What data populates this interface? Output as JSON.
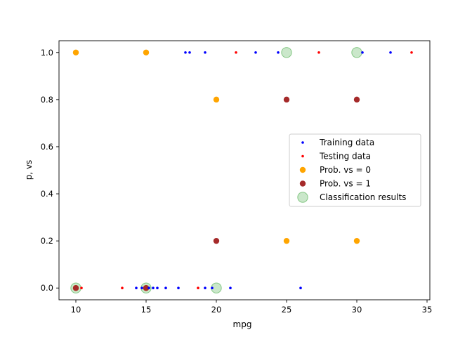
{
  "chart_data": {
    "type": "scatter",
    "xlabel": "mpg",
    "ylabel": "p, vs",
    "xlim": [
      8.8,
      35.2
    ],
    "ylim": [
      -0.05,
      1.05
    ],
    "xticks": [
      10,
      15,
      20,
      25,
      30,
      35
    ],
    "yticks": [
      0.0,
      0.2,
      0.4,
      0.6,
      0.8,
      1.0
    ],
    "xtick_labels": [
      "10",
      "15",
      "20",
      "25",
      "30",
      "35"
    ],
    "ytick_labels": [
      "0.0",
      "0.2",
      "0.4",
      "0.6",
      "0.8",
      "1.0"
    ],
    "grid": false,
    "legend_position": "center-right",
    "series": [
      {
        "name": "Training data",
        "color": "#0000ff",
        "marker": "small-dot",
        "points": [
          [
            17.8,
            1
          ],
          [
            18.1,
            1
          ],
          [
            19.2,
            1
          ],
          [
            22.8,
            1
          ],
          [
            24.4,
            1
          ],
          [
            30.4,
            1
          ],
          [
            32.4,
            1
          ],
          [
            14.3,
            0
          ],
          [
            14.7,
            0
          ],
          [
            15.2,
            0
          ],
          [
            15.5,
            0
          ],
          [
            15.8,
            0
          ],
          [
            16.4,
            0
          ],
          [
            17.3,
            0
          ],
          [
            19.2,
            0
          ],
          [
            19.7,
            0
          ],
          [
            21.0,
            0
          ],
          [
            26.0,
            0
          ]
        ]
      },
      {
        "name": "Testing data",
        "color": "#ff0000",
        "marker": "small-dot",
        "points": [
          [
            21.4,
            1
          ],
          [
            27.3,
            1
          ],
          [
            33.9,
            1
          ],
          [
            10.4,
            0
          ],
          [
            13.3,
            0
          ],
          [
            18.7,
            0
          ]
        ]
      },
      {
        "name": "Prob. vs = 0",
        "color": "#ffa500",
        "marker": "circle",
        "points": [
          [
            10,
            1.0
          ],
          [
            15,
            1.0
          ],
          [
            20,
            0.8
          ],
          [
            25,
            0.2
          ],
          [
            30,
            0.2
          ],
          [
            10,
            0.0
          ],
          [
            15,
            0.0
          ]
        ]
      },
      {
        "name": "Prob. vs = 1",
        "color": "#a52a2a",
        "marker": "circle",
        "points": [
          [
            10,
            0.0
          ],
          [
            15,
            0.0
          ],
          [
            20,
            0.2
          ],
          [
            25,
            0.8
          ],
          [
            30,
            0.8
          ]
        ]
      },
      {
        "name": "Classification results",
        "color": "#2ca02c",
        "marker": "large-circle",
        "alpha": 0.25,
        "points": [
          [
            10,
            0
          ],
          [
            15,
            0
          ],
          [
            20,
            0
          ],
          [
            25,
            1
          ],
          [
            30,
            1
          ]
        ]
      }
    ]
  }
}
